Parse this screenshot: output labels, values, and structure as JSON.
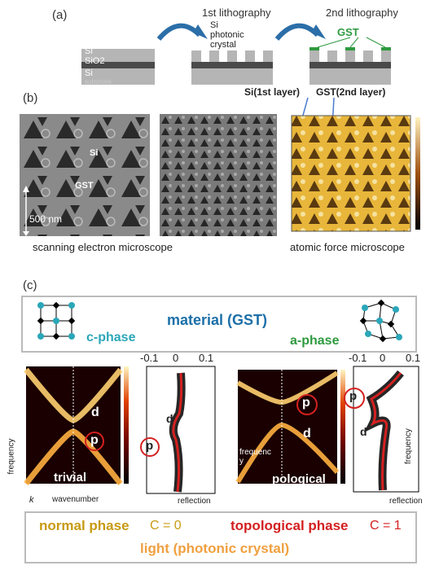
{
  "panel_a": {
    "label": "(a)",
    "step1": "1st lithography",
    "step2": "2nd lithography",
    "layers": [
      "Si",
      "SiO2",
      "Si",
      "substrate"
    ],
    "si_crystal": [
      "Si",
      "photonic",
      "crystal"
    ],
    "gst": "GST"
  },
  "panel_b": {
    "label": "(b)",
    "si_layer": "Si(1st layer)",
    "gst_layer": "GST(2nd layer)",
    "img_si": "Si",
    "img_gst": "GST",
    "scale": "500 nm",
    "sem": "scanning electron microscope",
    "afm": "atomic force microscope"
  },
  "panel_c": {
    "label": "(c)",
    "material": "material (GST)",
    "c_phase": "c-phase",
    "a_phase": "a-phase",
    "left": {
      "d": "d",
      "p": "p",
      "name": "trivial",
      "ylabel": "frequency",
      "k": "k",
      "xlabel": "wavenumber",
      "refl_ticks": [
        "-0.1",
        "0",
        "0.1"
      ],
      "refl_label": "reflection"
    },
    "right": {
      "d": "d",
      "p": "p",
      "name": "pological",
      "ylabel": "frequenc y",
      "refl_ticks": [
        "-0.1",
        "0",
        "0.1"
      ],
      "refl_label": "reflection",
      "freq_label": "frequency"
    },
    "normal": "normal phase",
    "c0": "C = 0",
    "topo": "topological phase",
    "c1": "C = 1",
    "light": "light (photonic crystal)"
  },
  "colors": {
    "teal": "#2aa7b8",
    "blue": "#1c6fa8",
    "green": "#2e9a3f",
    "gold": "#c79a12",
    "red": "#d42020",
    "orange": "#f0a040"
  }
}
